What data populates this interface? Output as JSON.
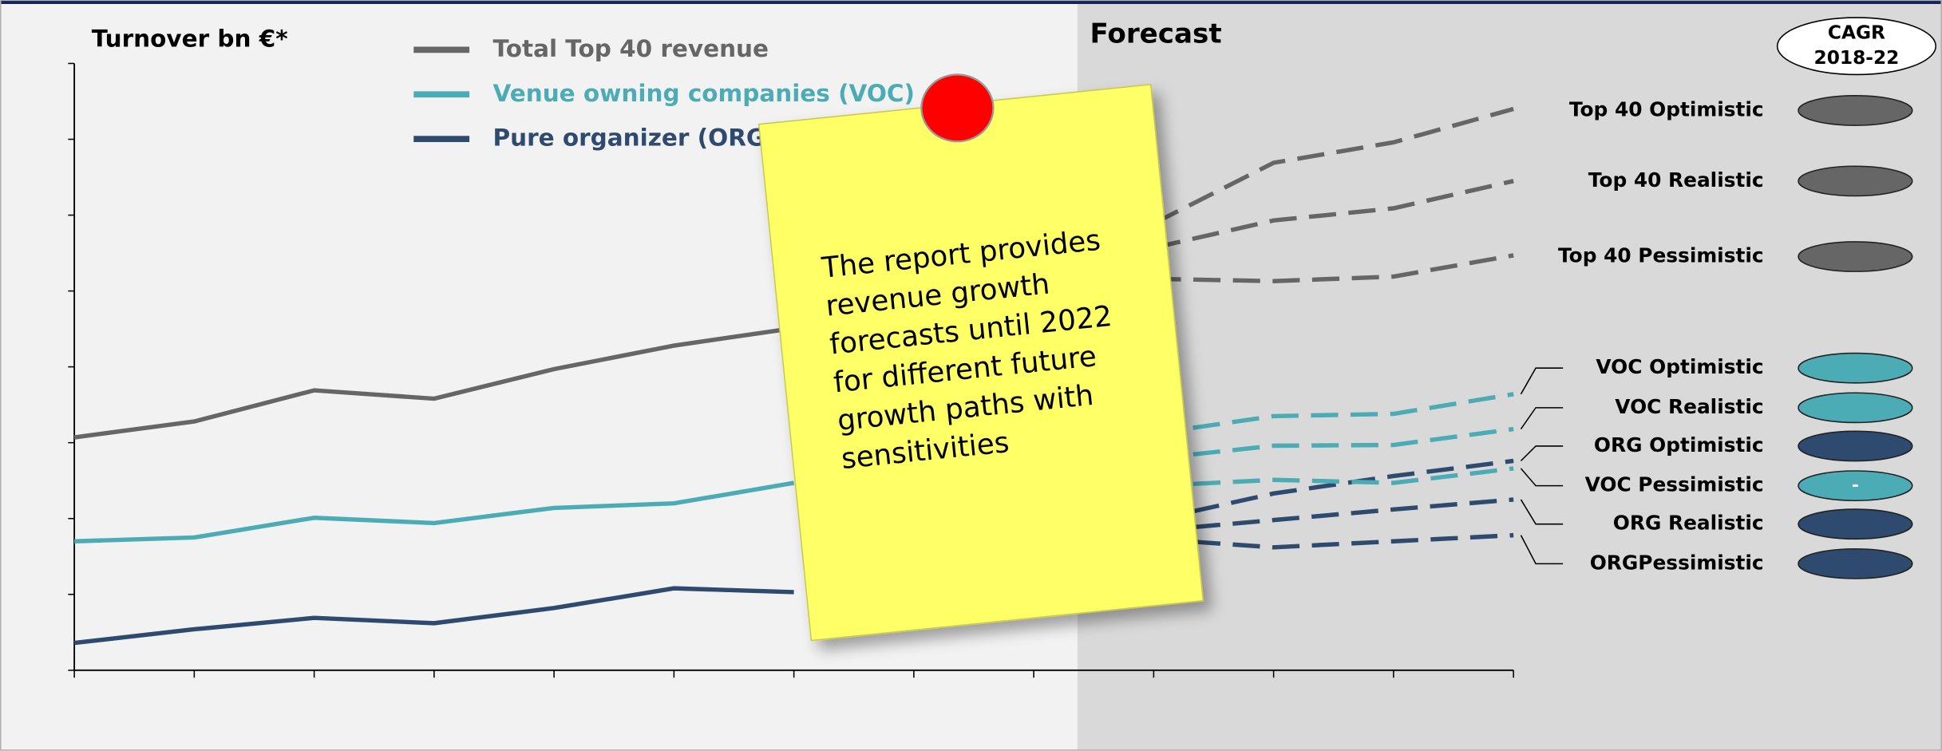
{
  "chart_data": {
    "type": "line",
    "title": "Turnover bn €*",
    "forecast_label": "Forecast",
    "cagr_header": [
      "CAGR",
      "2018-22"
    ],
    "note": [
      "The report provides",
      "revenue growth",
      "forecasts until 2022",
      "for different future",
      "growth paths with",
      "sensitivities"
    ],
    "categories": [
      null,
      null,
      null,
      null,
      null,
      null,
      null,
      null,
      null,
      null,
      null,
      null,
      null
    ],
    "ylim": [
      0,
      8
    ],
    "yticks": [
      0,
      1,
      2,
      3,
      4,
      5,
      6,
      7,
      8
    ],
    "series": [
      {
        "name": "Total Top 40 revenue",
        "color": "#666666",
        "dashed": false,
        "values": [
          3.07,
          3.28,
          3.69,
          3.58,
          3.97,
          4.28,
          4.51,
          null,
          null,
          null,
          null,
          null,
          null
        ]
      },
      {
        "name": "Venue owning companies (VOC)",
        "color": "#4bacb6",
        "dashed": false,
        "values": [
          1.7,
          1.75,
          2.01,
          1.94,
          2.14,
          2.2,
          2.47,
          null,
          null,
          null,
          null,
          null,
          null
        ]
      },
      {
        "name": "Pure organizer (ORG)",
        "color": "#2e4a6e",
        "dashed": false,
        "values": [
          0.36,
          0.54,
          0.69,
          0.62,
          0.82,
          1.08,
          1.03,
          null,
          null,
          null,
          null,
          null,
          null
        ]
      },
      {
        "name": "Top 40 Optimistic",
        "color": "#666666",
        "dashed": true,
        "values": [
          null,
          null,
          null,
          null,
          null,
          null,
          null,
          null,
          null,
          5.89,
          6.69,
          6.96,
          7.4
        ]
      },
      {
        "name": "Top 40 Realistic",
        "color": "#666666",
        "dashed": true,
        "values": [
          null,
          null,
          null,
          null,
          null,
          null,
          null,
          null,
          null,
          5.57,
          5.93,
          6.09,
          6.45
        ]
      },
      {
        "name": "Top 40 Pessimistic",
        "color": "#666666",
        "dashed": true,
        "values": [
          null,
          null,
          null,
          null,
          null,
          null,
          null,
          null,
          null,
          5.16,
          5.13,
          5.19,
          5.47
        ]
      },
      {
        "name": "VOC Optimistic",
        "color": "#4bacb6",
        "dashed": true,
        "values": [
          null,
          null,
          null,
          null,
          null,
          null,
          null,
          null,
          null,
          3.12,
          3.35,
          3.38,
          3.64
        ]
      },
      {
        "name": "VOC Realistic",
        "color": "#4bacb6",
        "dashed": true,
        "values": [
          null,
          null,
          null,
          null,
          null,
          null,
          null,
          null,
          null,
          2.79,
          2.96,
          2.97,
          3.18
        ]
      },
      {
        "name": "ORG Optimistic",
        "color": "#2e4a6e",
        "dashed": true,
        "values": [
          null,
          null,
          null,
          null,
          null,
          null,
          null,
          null,
          null,
          1.98,
          2.33,
          2.56,
          2.76
        ]
      },
      {
        "name": "VOC Pessimistic",
        "color": "#4bacb6",
        "dashed": true,
        "cagr": "-",
        "values": [
          null,
          null,
          null,
          null,
          null,
          null,
          null,
          null,
          null,
          2.43,
          2.51,
          2.47,
          2.66
        ]
      },
      {
        "name": "ORG Realistic",
        "color": "#2e4a6e",
        "dashed": true,
        "values": [
          null,
          null,
          null,
          null,
          null,
          null,
          null,
          null,
          null,
          1.84,
          1.98,
          2.12,
          2.25
        ]
      },
      {
        "name": "ORGPessimistic",
        "color": "#2e4a6e",
        "dashed": true,
        "values": [
          null,
          null,
          null,
          null,
          null,
          null,
          null,
          null,
          null,
          1.73,
          1.62,
          1.7,
          1.78
        ]
      }
    ]
  }
}
